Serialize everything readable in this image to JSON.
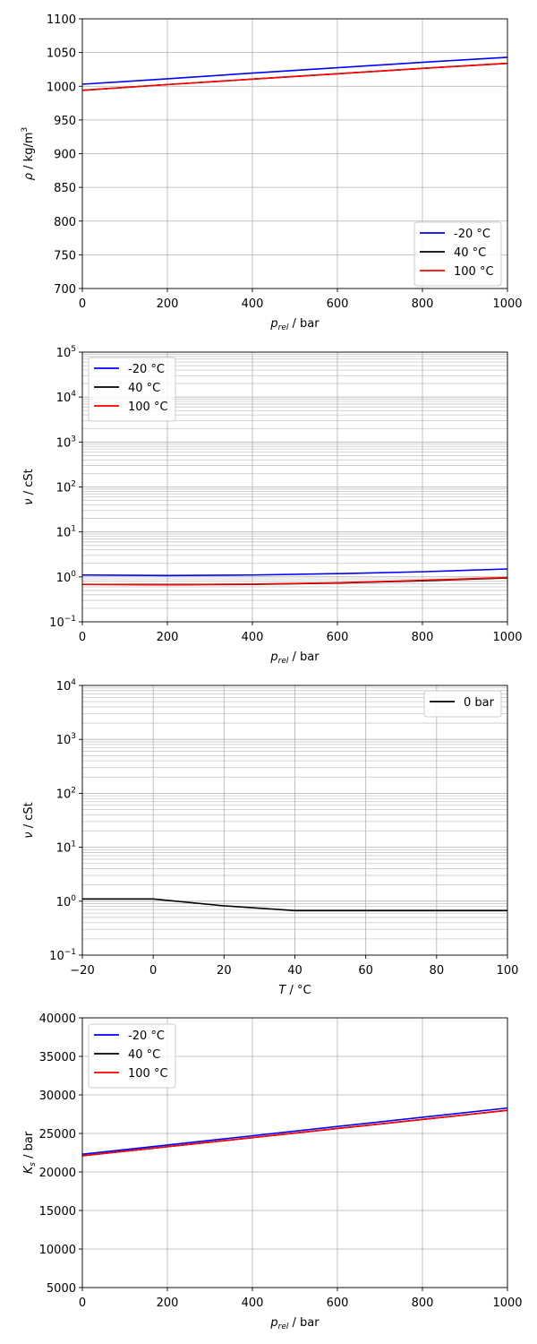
{
  "chart_data": [
    {
      "type": "line",
      "xlabel": {
        "base": "p",
        "sub": "rel",
        "rest": " / bar"
      },
      "ylabel": {
        "base": "ρ",
        "rest": " / kg/m",
        "sup": "3"
      },
      "xlim": [
        0,
        1000
      ],
      "ylim": [
        700,
        1100
      ],
      "yscale": "linear",
      "xticks": [
        0,
        200,
        400,
        600,
        800,
        1000
      ],
      "xtick_labels": [
        "0",
        "200",
        "400",
        "600",
        "800",
        "1000"
      ],
      "yticks": [
        700,
        750,
        800,
        850,
        900,
        950,
        1000,
        1050,
        1100
      ],
      "ytick_labels": [
        "700",
        "750",
        "800",
        "850",
        "900",
        "950",
        "1000",
        "1050",
        "1100"
      ],
      "grid": true,
      "legend": "lower-right",
      "series": [
        {
          "name": "-20 °C",
          "color": "#0000ff",
          "x": [
            0,
            200,
            400,
            600,
            800,
            1000
          ],
          "y": [
            1003,
            1011,
            1019.5,
            1027.5,
            1035.5,
            1043
          ]
        },
        {
          "name": "40 °C",
          "color": "#000000",
          "x": [
            0,
            200,
            400,
            600,
            800,
            1000
          ],
          "y": [
            994,
            1002.5,
            1010.5,
            1018.5,
            1026.5,
            1034
          ]
        },
        {
          "name": "100 °C",
          "color": "#ff0000",
          "x": [
            0,
            200,
            400,
            600,
            800,
            1000
          ],
          "y": [
            994,
            1002.5,
            1010.5,
            1018.5,
            1026.5,
            1034
          ]
        }
      ]
    },
    {
      "type": "line",
      "xlabel": {
        "base": "p",
        "sub": "rel",
        "rest": " / bar"
      },
      "ylabel": {
        "base": "ν",
        "rest": " / cSt"
      },
      "xlim": [
        0,
        1000
      ],
      "ylim": [
        0.1,
        100000
      ],
      "yscale": "log",
      "xticks": [
        0,
        200,
        400,
        600,
        800,
        1000
      ],
      "xtick_labels": [
        "0",
        "200",
        "400",
        "600",
        "800",
        "1000"
      ],
      "yticks": [
        0.1,
        1,
        10,
        100,
        1000,
        10000,
        100000
      ],
      "ytick_labels": [
        {
          "base": "10",
          "exp": "−1"
        },
        {
          "base": "10",
          "exp": "0"
        },
        {
          "base": "10",
          "exp": "1"
        },
        {
          "base": "10",
          "exp": "2"
        },
        {
          "base": "10",
          "exp": "3"
        },
        {
          "base": "10",
          "exp": "4"
        },
        {
          "base": "10",
          "exp": "5"
        }
      ],
      "grid": true,
      "minor_grid": true,
      "legend": "upper-left",
      "series": [
        {
          "name": "-20 °C",
          "color": "#0000ff",
          "x": [
            0,
            200,
            400,
            600,
            800,
            1000
          ],
          "y": [
            1.1,
            1.07,
            1.1,
            1.18,
            1.3,
            1.5
          ]
        },
        {
          "name": "40 °C",
          "color": "#000000",
          "x": [
            0,
            200,
            400,
            600,
            800,
            1000
          ],
          "y": [
            0.68,
            0.67,
            0.68,
            0.73,
            0.82,
            0.95
          ]
        },
        {
          "name": "100 °C",
          "color": "#ff0000",
          "x": [
            0,
            200,
            400,
            600,
            800,
            1000
          ],
          "y": [
            0.68,
            0.67,
            0.69,
            0.74,
            0.84,
            0.97
          ]
        }
      ]
    },
    {
      "type": "line",
      "xlabel": {
        "base": "T",
        "rest": " / °C"
      },
      "ylabel": {
        "base": "ν",
        "rest": " / cSt"
      },
      "xlim": [
        -20,
        100
      ],
      "ylim": [
        0.1,
        10000
      ],
      "yscale": "log",
      "xticks": [
        -20,
        0,
        20,
        40,
        60,
        80,
        100
      ],
      "xtick_labels": [
        "−20",
        "0",
        "20",
        "40",
        "60",
        "80",
        "100"
      ],
      "yticks": [
        0.1,
        1,
        10,
        100,
        1000,
        10000
      ],
      "ytick_labels": [
        {
          "base": "10",
          "exp": "−1"
        },
        {
          "base": "10",
          "exp": "0"
        },
        {
          "base": "10",
          "exp": "1"
        },
        {
          "base": "10",
          "exp": "2"
        },
        {
          "base": "10",
          "exp": "3"
        },
        {
          "base": "10",
          "exp": "4"
        }
      ],
      "grid": true,
      "minor_grid": true,
      "legend": "upper-right",
      "series": [
        {
          "name": "0 bar",
          "color": "#000000",
          "x": [
            -20,
            0,
            20,
            40,
            60,
            80,
            100
          ],
          "y": [
            1.1,
            1.1,
            0.82,
            0.67,
            0.67,
            0.67,
            0.67
          ]
        }
      ]
    },
    {
      "type": "line",
      "xlabel": {
        "base": "p",
        "sub": "rel",
        "rest": " / bar"
      },
      "ylabel": {
        "base": "K",
        "sub": "s",
        "rest": " / bar"
      },
      "xlim": [
        0,
        1000
      ],
      "ylim": [
        5000,
        40000
      ],
      "yscale": "linear",
      "xticks": [
        0,
        200,
        400,
        600,
        800,
        1000
      ],
      "xtick_labels": [
        "0",
        "200",
        "400",
        "600",
        "800",
        "1000"
      ],
      "yticks": [
        5000,
        10000,
        15000,
        20000,
        25000,
        30000,
        35000,
        40000
      ],
      "ytick_labels": [
        "5000",
        "10000",
        "15000",
        "20000",
        "25000",
        "30000",
        "35000",
        "40000"
      ],
      "grid": true,
      "legend": "upper-left",
      "series": [
        {
          "name": "-20 °C",
          "color": "#0000ff",
          "x": [
            0,
            1000
          ],
          "y": [
            22300,
            28300
          ]
        },
        {
          "name": "40 °C",
          "color": "#000000",
          "x": [
            0,
            1000
          ],
          "y": [
            22100,
            28000
          ]
        },
        {
          "name": "100 °C",
          "color": "#ff0000",
          "x": [
            0,
            1000
          ],
          "y": [
            22100,
            28000
          ]
        }
      ]
    }
  ]
}
